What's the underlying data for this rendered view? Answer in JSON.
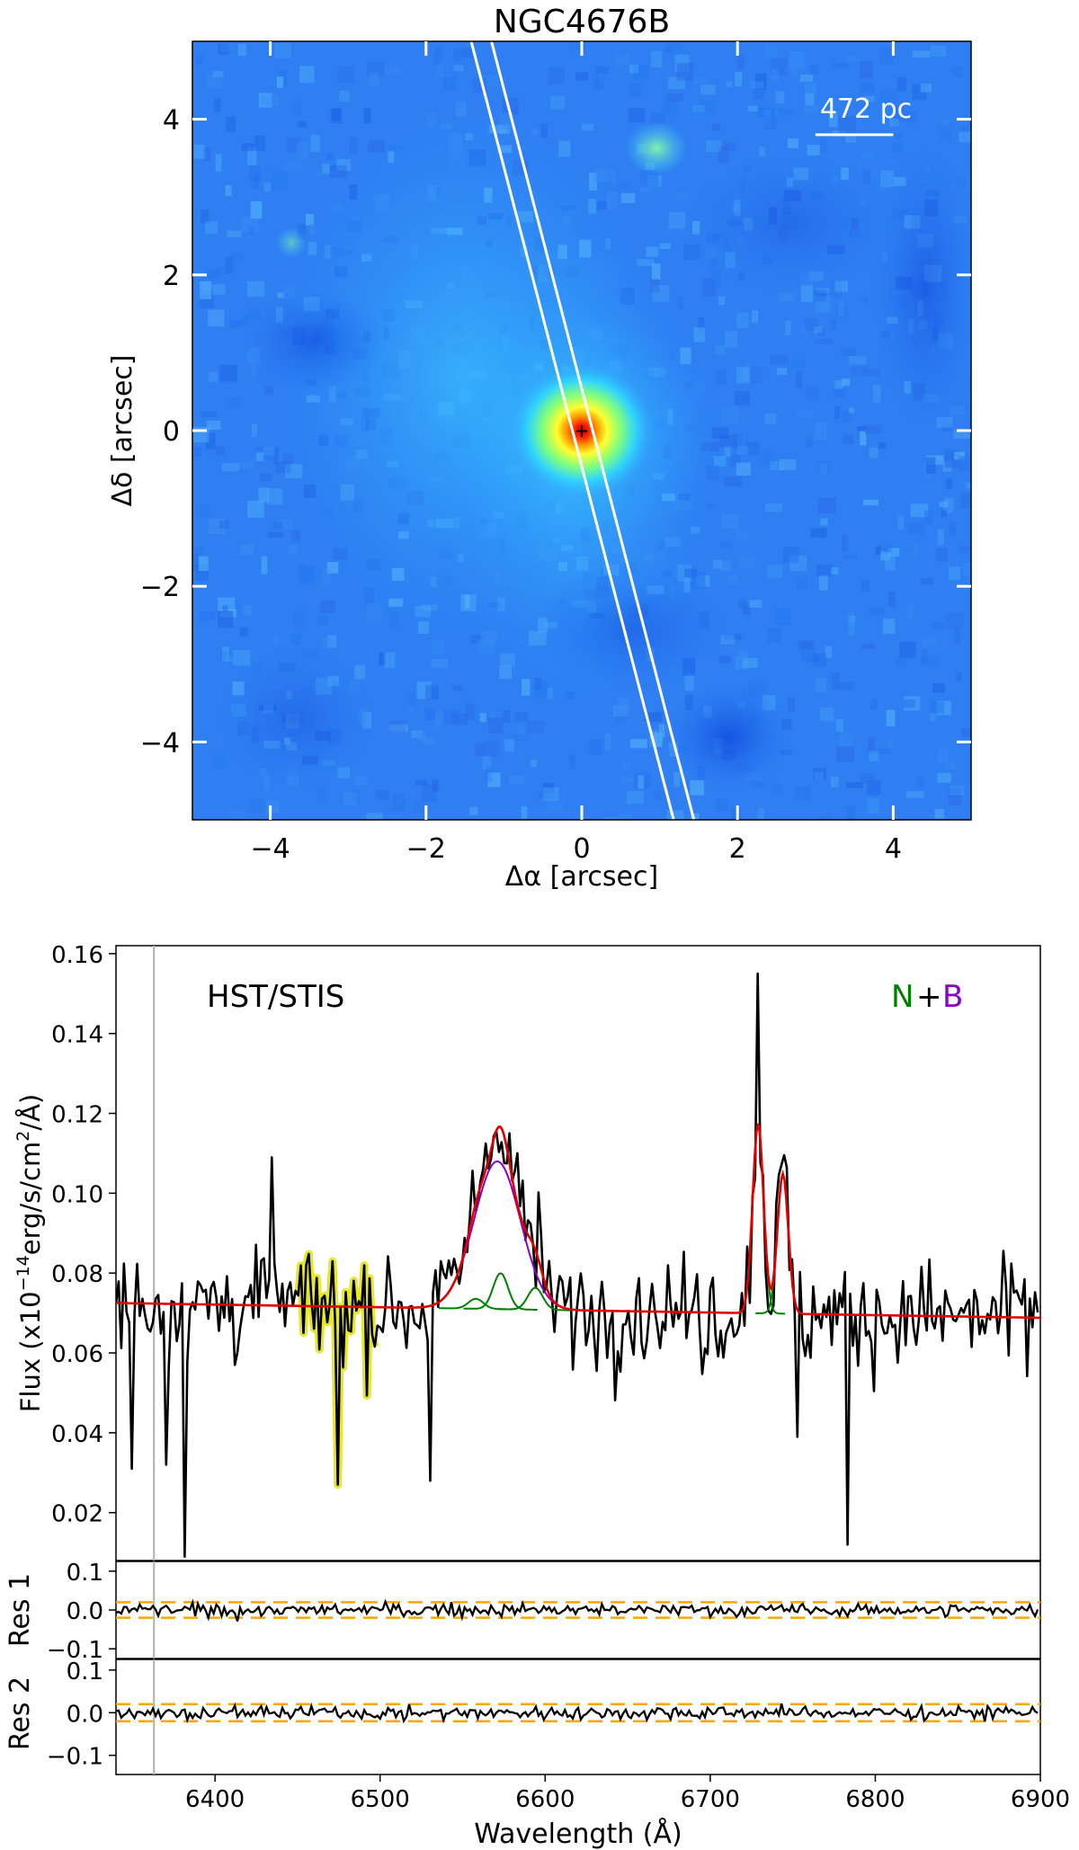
{
  "image_panel": {
    "title": "NGC4676B",
    "xlabel": "Δα [arcsec]",
    "ylabel": "Δδ [arcsec]",
    "xlim": [
      -5,
      5
    ],
    "ylim": [
      -5,
      5
    ],
    "xticks": [
      -4,
      -2,
      0,
      2,
      4
    ],
    "yticks": [
      -4,
      -2,
      0,
      2,
      4
    ],
    "tick_labels": [
      "−4",
      "−2",
      "0",
      "2",
      "4"
    ],
    "scale_bar_label": "472 pc",
    "scale_bar_arcsec": 1.0,
    "nucleus_arcsec": [
      0,
      0
    ],
    "slit": {
      "pa_line1": [
        [
          -1.42,
          5
        ],
        [
          1.18,
          -5
        ]
      ],
      "pa_line2": [
        [
          -1.16,
          5
        ],
        [
          1.44,
          -5
        ]
      ]
    }
  },
  "chart_data": [
    {
      "type": "line",
      "name": "spectrum",
      "title": "",
      "annotation": "HST/STIS",
      "legend_N": "N",
      "legend_plus": "+",
      "legend_B": "B",
      "xlabel": "Wavelength (Å)",
      "ylabel": "Flux (x10−14erg/s/cm2/Å)",
      "xlim": [
        6340,
        6900
      ],
      "ylim": [
        0.008,
        0.162
      ],
      "xticks": [
        6400,
        6500,
        6600,
        6700,
        6800,
        6900
      ],
      "yticks": [
        0.02,
        0.04,
        0.06,
        0.08,
        0.1,
        0.12,
        0.14,
        0.16
      ],
      "ytick_labels": [
        "0.02",
        "0.04",
        "0.06",
        "0.08",
        "0.10",
        "0.12",
        "0.14",
        "0.16"
      ],
      "vline_wavelength": 6363,
      "masked_region": [
        6450,
        6498
      ],
      "continuum": {
        "x": [
          6340,
          6900
        ],
        "y": [
          0.0725,
          0.0688
        ]
      },
      "series": [
        {
          "name": "narrow [NII]6548",
          "color": "#008000",
          "center": 6558,
          "amp": 0.0025,
          "sigma": 4.5
        },
        {
          "name": "narrow Halpha",
          "color": "#008000",
          "center": 6573,
          "amp": 0.009,
          "sigma": 4.5
        },
        {
          "name": "narrow [NII]6583",
          "color": "#008000",
          "center": 6594,
          "amp": 0.0055,
          "sigma": 4.5
        },
        {
          "name": "broad Halpha",
          "color": "#8b00c8",
          "center": 6571,
          "amp": 0.037,
          "sigma": 14
        },
        {
          "name": "narrow [SII]6716",
          "color": "#008000",
          "center": 6729,
          "amp": 0.0475,
          "sigma": 3.3
        },
        {
          "name": "narrow [SII]6731",
          "color": "#008000",
          "center": 6744,
          "amp": 0.035,
          "sigma": 3.3
        },
        {
          "name": "total model",
          "color": "#e00000"
        }
      ],
      "observed": {
        "color": "#000000",
        "noise_sigma": 0.011,
        "spikes": [
          {
            "x": 6349,
            "y": 0.031
          },
          {
            "x": 6371,
            "y": 0.032
          },
          {
            "x": 6381,
            "y": 0.009
          },
          {
            "x": 6434,
            "y": 0.109
          },
          {
            "x": 6474,
            "y": 0.027
          },
          {
            "x": 6531,
            "y": 0.028
          },
          {
            "x": 6729,
            "y": 0.155
          },
          {
            "x": 6753,
            "y": 0.039
          },
          {
            "x": 6784,
            "y": 0.012
          }
        ]
      }
    },
    {
      "type": "line",
      "name": "residual 1",
      "ylabel": "Res 1",
      "ylim": [
        -0.125,
        0.125
      ],
      "yticks": [
        -0.1,
        0.0,
        0.1
      ],
      "ytick_labels": [
        "−0.1",
        "0.0",
        "0.1"
      ],
      "band": [
        -0.02,
        0.02
      ],
      "band_color": "#ffa500",
      "noise_sigma": 0.011
    },
    {
      "type": "line",
      "name": "residual 2",
      "ylabel": "Res 2",
      "ylim": [
        -0.145,
        0.125
      ],
      "yticks": [
        -0.1,
        0.0,
        0.1
      ],
      "ytick_labels": [
        "−0.1",
        "0.0",
        "0.1"
      ],
      "band": [
        -0.02,
        0.02
      ],
      "band_color": "#ffa500",
      "noise_sigma": 0.011
    }
  ]
}
